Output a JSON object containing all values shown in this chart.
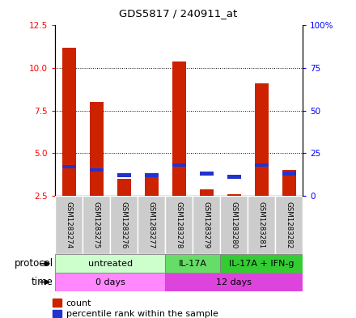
{
  "title": "GDS5817 / 240911_at",
  "samples": [
    "GSM1283274",
    "GSM1283275",
    "GSM1283276",
    "GSM1283277",
    "GSM1283278",
    "GSM1283279",
    "GSM1283280",
    "GSM1283281",
    "GSM1283282"
  ],
  "count_values": [
    11.2,
    8.0,
    3.5,
    3.6,
    10.4,
    2.85,
    2.6,
    9.1,
    4.0
  ],
  "percentile_values": [
    17,
    15,
    12,
    12,
    18,
    13,
    11,
    18,
    13
  ],
  "ylim_left": [
    2.5,
    12.5
  ],
  "ylim_right": [
    0,
    100
  ],
  "yticks_left": [
    2.5,
    5.0,
    7.5,
    10.0,
    12.5
  ],
  "yticks_right": [
    0,
    25,
    50,
    75,
    100
  ],
  "ytick_right_labels": [
    "0",
    "25",
    "50",
    "75",
    "100%"
  ],
  "bar_color_red": "#cc2200",
  "bar_color_blue": "#2233cc",
  "bar_width": 0.5,
  "protocol_groups": [
    {
      "label": "untreated",
      "start": 0,
      "end": 4,
      "color": "#ccffcc"
    },
    {
      "label": "IL-17A",
      "start": 4,
      "end": 6,
      "color": "#66dd66"
    },
    {
      "label": "IL-17A + IFN-g",
      "start": 6,
      "end": 9,
      "color": "#33cc33"
    }
  ],
  "time_groups": [
    {
      "label": "0 days",
      "start": 0,
      "end": 4,
      "color": "#ff88ff"
    },
    {
      "label": "12 days",
      "start": 4,
      "end": 9,
      "color": "#dd44dd"
    }
  ],
  "protocol_label": "protocol",
  "time_label": "time",
  "legend_count": "count",
  "legend_percentile": "percentile rank within the sample",
  "sample_bg_color": "#cccccc",
  "sample_bg_alt": "#bbbbbb"
}
